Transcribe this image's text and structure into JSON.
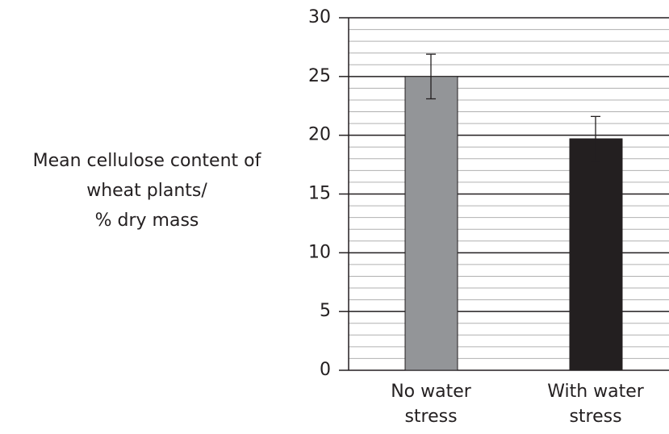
{
  "chart_data": {
    "type": "bar",
    "ylabel": [
      "Mean cellulose content of",
      "wheat plants/",
      "% dry mass"
    ],
    "categories": [
      "No water stress",
      "With water stress"
    ],
    "values": [
      25,
      19.7
    ],
    "errors": [
      1.9,
      1.9
    ],
    "colors": [
      "#939598",
      "#231f20"
    ],
    "ylim": [
      0,
      30
    ],
    "yticks": [
      0,
      5,
      10,
      15,
      20,
      25,
      30
    ],
    "minor_yticks": [
      1,
      2,
      3,
      4,
      6,
      7,
      8,
      9,
      11,
      12,
      13,
      14,
      16,
      17,
      18,
      19,
      21,
      22,
      23,
      24,
      26,
      27,
      28,
      29
    ],
    "grid": true
  }
}
